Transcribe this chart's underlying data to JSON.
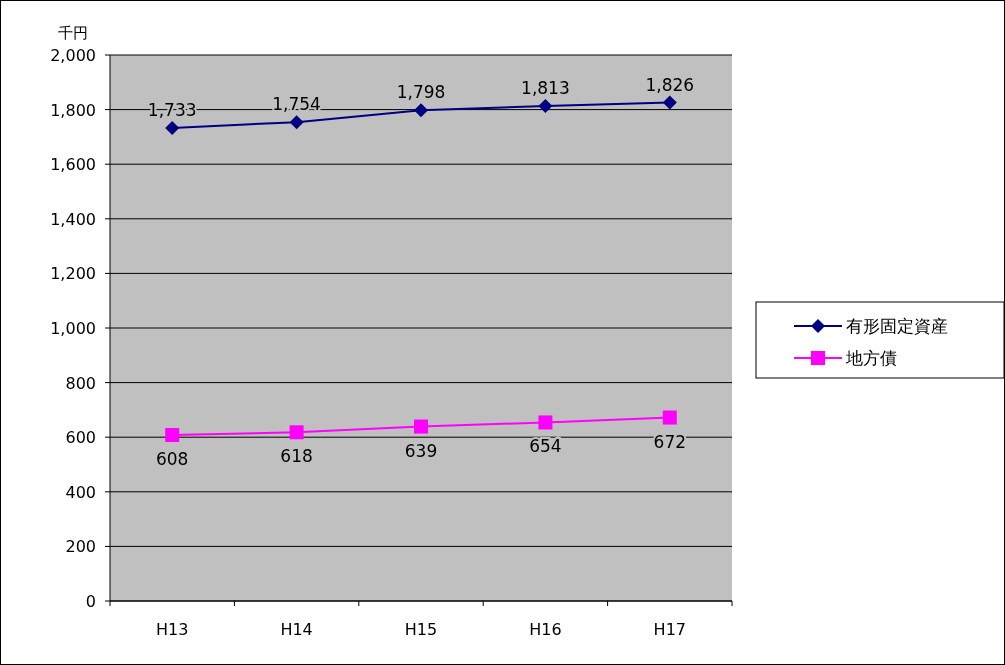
{
  "chart_data": {
    "type": "line",
    "ylabel": "千円",
    "categories": [
      "H13",
      "H14",
      "H15",
      "H16",
      "H17"
    ],
    "ylim": [
      0,
      2000
    ],
    "yticks": [
      0,
      200,
      400,
      600,
      800,
      {
        "value": 1000,
        "label": "1,000"
      },
      {
        "value": 1200,
        "label": "1,200"
      },
      {
        "value": 1400,
        "label": "1,400"
      },
      {
        "value": 1600,
        "label": "1,600"
      },
      {
        "value": 1800,
        "label": "1,800"
      },
      {
        "value": 2000,
        "label": "2,000"
      }
    ],
    "grid": "y",
    "legend": "right",
    "line_style": "solid",
    "series": [
      {
        "name": "有形固定資産",
        "color": "#000080",
        "marker": "diamond",
        "values": [
          1733,
          1754,
          1798,
          1813,
          1826
        ],
        "value_labels": [
          "1,733",
          "1,754",
          "1,798",
          "1,813",
          "1,826"
        ]
      },
      {
        "name": "地方債",
        "color": "#ff00ff",
        "marker": "square",
        "values": [
          608,
          618,
          639,
          654,
          672
        ],
        "value_labels": [
          "608",
          "618",
          "639",
          "654",
          "672"
        ]
      }
    ]
  }
}
